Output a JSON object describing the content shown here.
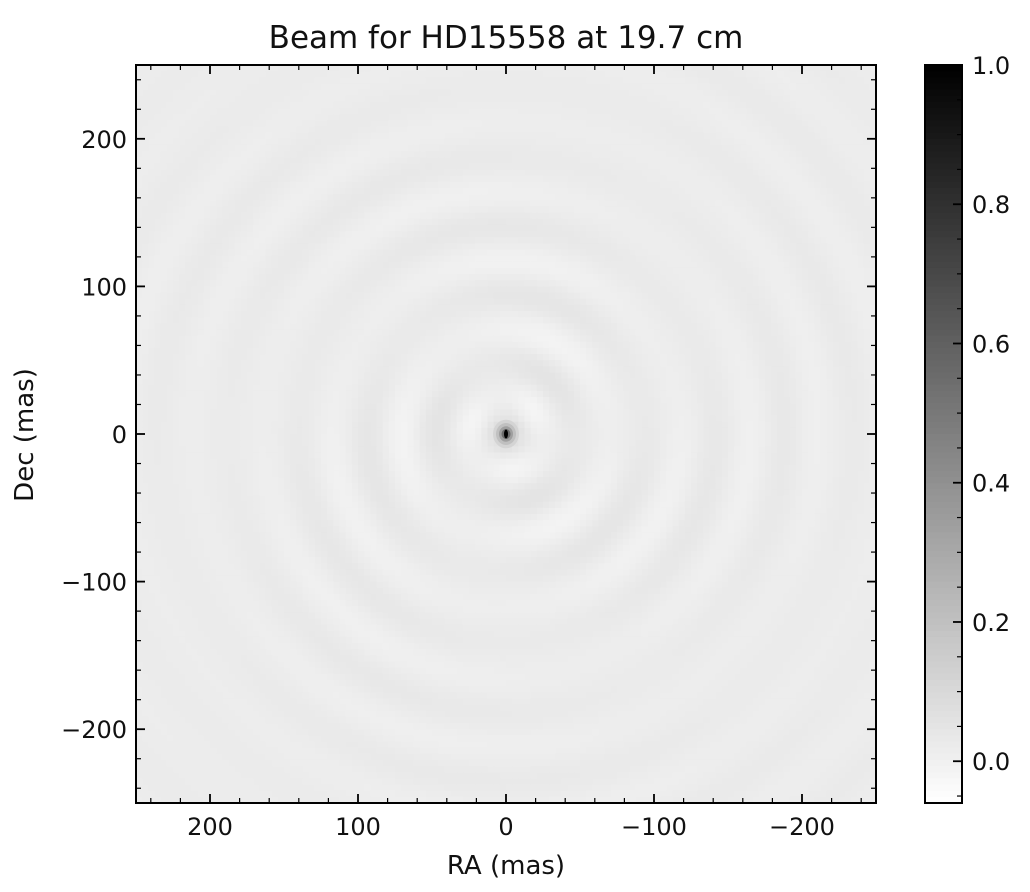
{
  "chart_data": {
    "type": "heatmap",
    "title": "Beam for HD15558 at 19.7 cm",
    "xlabel": "RA (mas)",
    "ylabel": "Dec (mas)",
    "xlim": [
      250,
      -250
    ],
    "ylim": [
      -250,
      250
    ],
    "x_ticks": [
      200,
      100,
      0,
      -100,
      -200
    ],
    "x_tick_labels": [
      "200",
      "100",
      "0",
      "−100",
      "−200"
    ],
    "y_ticks": [
      200,
      100,
      0,
      -100,
      -200
    ],
    "y_tick_labels": [
      "200",
      "100",
      "0",
      "−100",
      "−200"
    ],
    "colormap": "gray_r",
    "colorbar": {
      "range": [
        -0.06,
        1.0
      ],
      "ticks": [
        0.0,
        0.2,
        0.4,
        0.6,
        0.8,
        1.0
      ],
      "tick_labels": [
        "0.0",
        "0.2",
        "0.4",
        "0.6",
        "0.8",
        "1.0"
      ]
    },
    "beam": {
      "peak_value": 1.0,
      "peak_position": [
        0,
        0
      ],
      "background_level": 0.02,
      "sidelobe_ring_amplitude": 0.03
    },
    "grid": false
  }
}
